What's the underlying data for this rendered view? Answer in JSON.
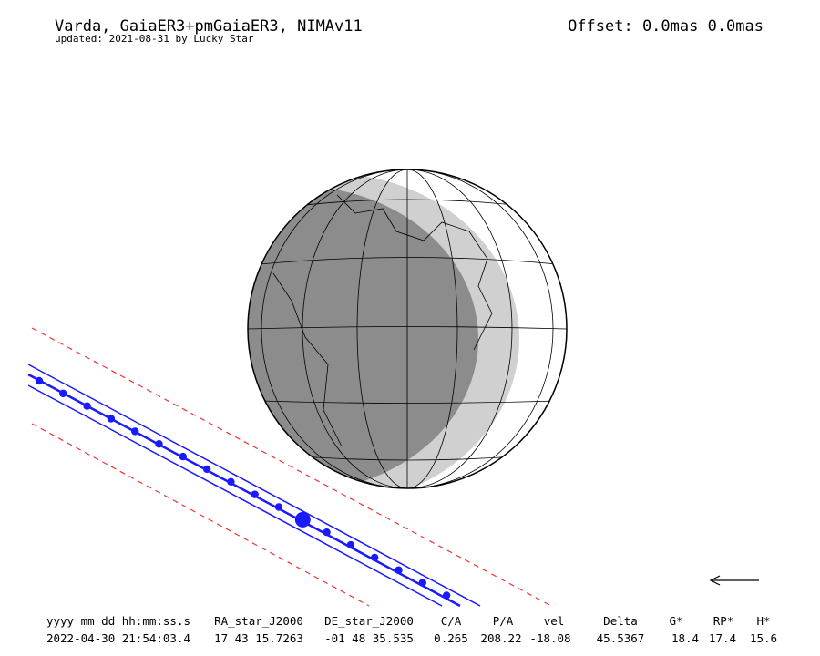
{
  "header": {
    "title": "Varda, GaiaER3+pmGaiaER3, NIMAv11",
    "subtitle": "updated: 2021-08-31 by Lucky Star",
    "offset": "Offset: 0.0mas 0.0mas"
  },
  "table": {
    "columns": [
      "yyyy mm dd hh:mm:ss.s",
      "RA_star_J2000",
      "DE_star_J2000",
      "C/A",
      "P/A",
      "vel",
      "Delta",
      "G*",
      "RP*",
      "H*"
    ],
    "rows": [
      [
        "2022-04-30 21:54:03.4",
        "17 43 15.7263",
        "-01 48 35.535",
        "0.265",
        "208.22",
        "-18.08",
        "45.5367",
        "18.4",
        "17.4",
        "15.6"
      ]
    ]
  }
}
